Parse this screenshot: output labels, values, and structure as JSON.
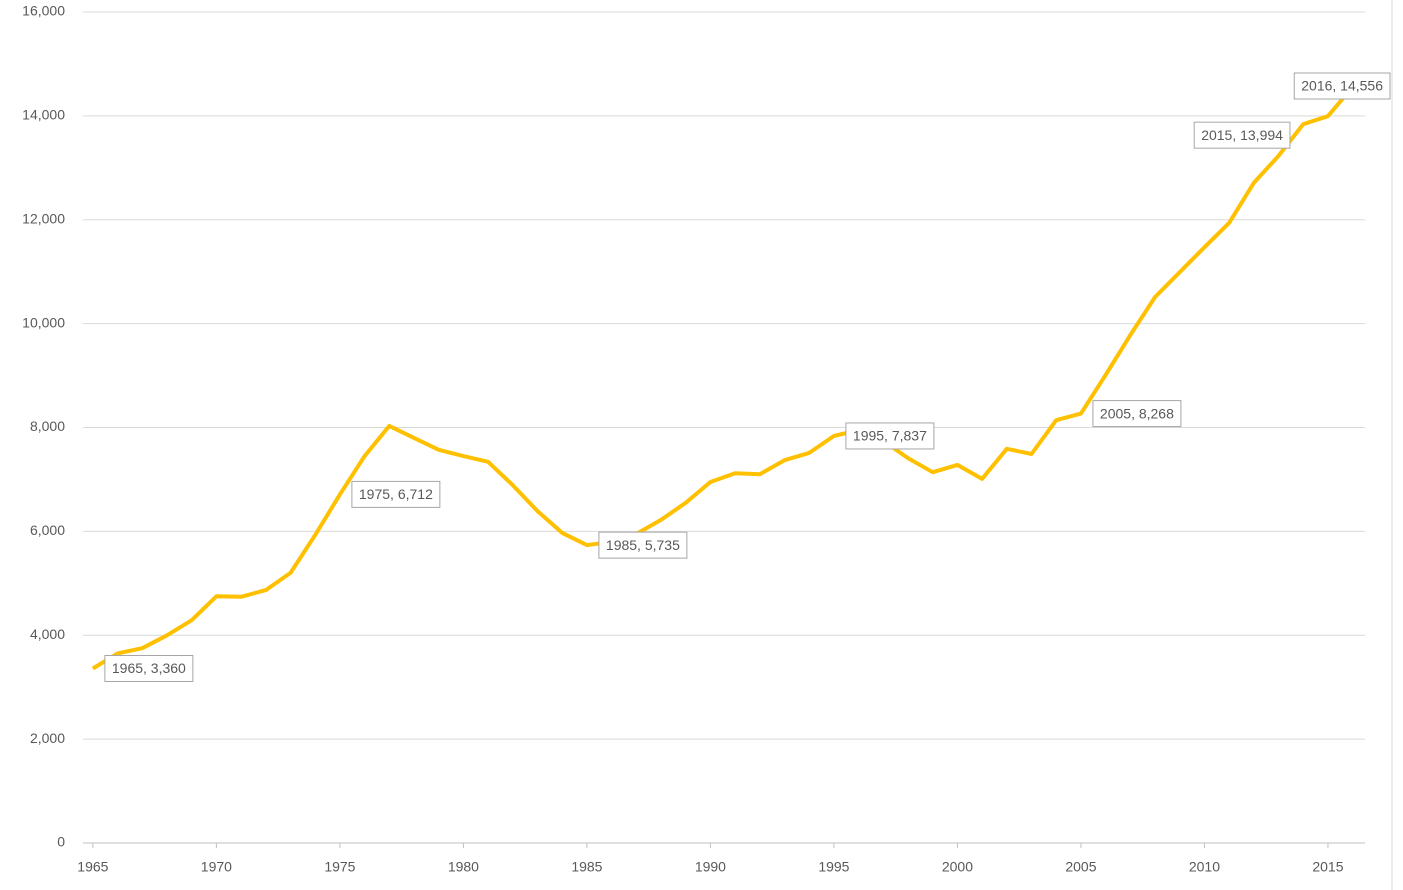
{
  "chart_data": {
    "type": "line",
    "x": [
      1965,
      1966,
      1967,
      1968,
      1969,
      1970,
      1971,
      1972,
      1973,
      1974,
      1975,
      1976,
      1977,
      1978,
      1979,
      1980,
      1981,
      1982,
      1983,
      1984,
      1985,
      1986,
      1987,
      1988,
      1989,
      1990,
      1991,
      1992,
      1993,
      1994,
      1995,
      1996,
      1997,
      1998,
      1999,
      2000,
      2001,
      2002,
      2003,
      2004,
      2005,
      2006,
      2007,
      2008,
      2009,
      2010,
      2011,
      2012,
      2013,
      2014,
      2015,
      2016
    ],
    "series": [
      {
        "color": "#ffc000",
        "values": [
          3360,
          3650,
          3750,
          4000,
          4290,
          4750,
          4740,
          4870,
          5200,
          5930,
          6712,
          7450,
          8030,
          7800,
          7570,
          7450,
          7340,
          6890,
          6390,
          5970,
          5735,
          5800,
          5950,
          6220,
          6550,
          6950,
          7120,
          7100,
          7370,
          7510,
          7837,
          7950,
          7740,
          7410,
          7140,
          7280,
          7010,
          7590,
          7490,
          8140,
          8268,
          9010,
          9780,
          10510,
          10990,
          11470,
          11940,
          12710,
          13230,
          13840,
          13994,
          14556
        ],
        "value_labels": [
          "1965, 3,360",
          null,
          null,
          null,
          null,
          null,
          null,
          null,
          null,
          null,
          "1975, 6,712",
          null,
          null,
          null,
          null,
          null,
          null,
          null,
          null,
          null,
          "1985, 5,735",
          null,
          null,
          null,
          null,
          null,
          null,
          null,
          null,
          null,
          "1995, 7,837",
          null,
          null,
          null,
          null,
          null,
          null,
          null,
          null,
          null,
          "2005, 8,268",
          null,
          null,
          null,
          null,
          null,
          null,
          null,
          null,
          null,
          "2015, 13,994",
          "2016, 14,556"
        ]
      }
    ],
    "xlim": [
      1964.6,
      2016.5
    ],
    "xticks": [
      1965,
      1970,
      1975,
      1980,
      1985,
      1990,
      1995,
      2000,
      2005,
      2010,
      2015
    ],
    "ylim": [
      0,
      16000
    ],
    "yticks": [
      0,
      {
        "value": 2000,
        "label": "2,000"
      },
      {
        "value": 4000,
        "label": "4,000"
      },
      {
        "value": 6000,
        "label": "6,000"
      },
      {
        "value": 8000,
        "label": "8,000"
      },
      {
        "value": 10000,
        "label": "10,000"
      },
      {
        "value": 12000,
        "label": "12,000"
      },
      {
        "value": 14000,
        "label": "14,000"
      },
      {
        "value": 16000,
        "label": "16,000"
      }
    ],
    "grid": true
  }
}
